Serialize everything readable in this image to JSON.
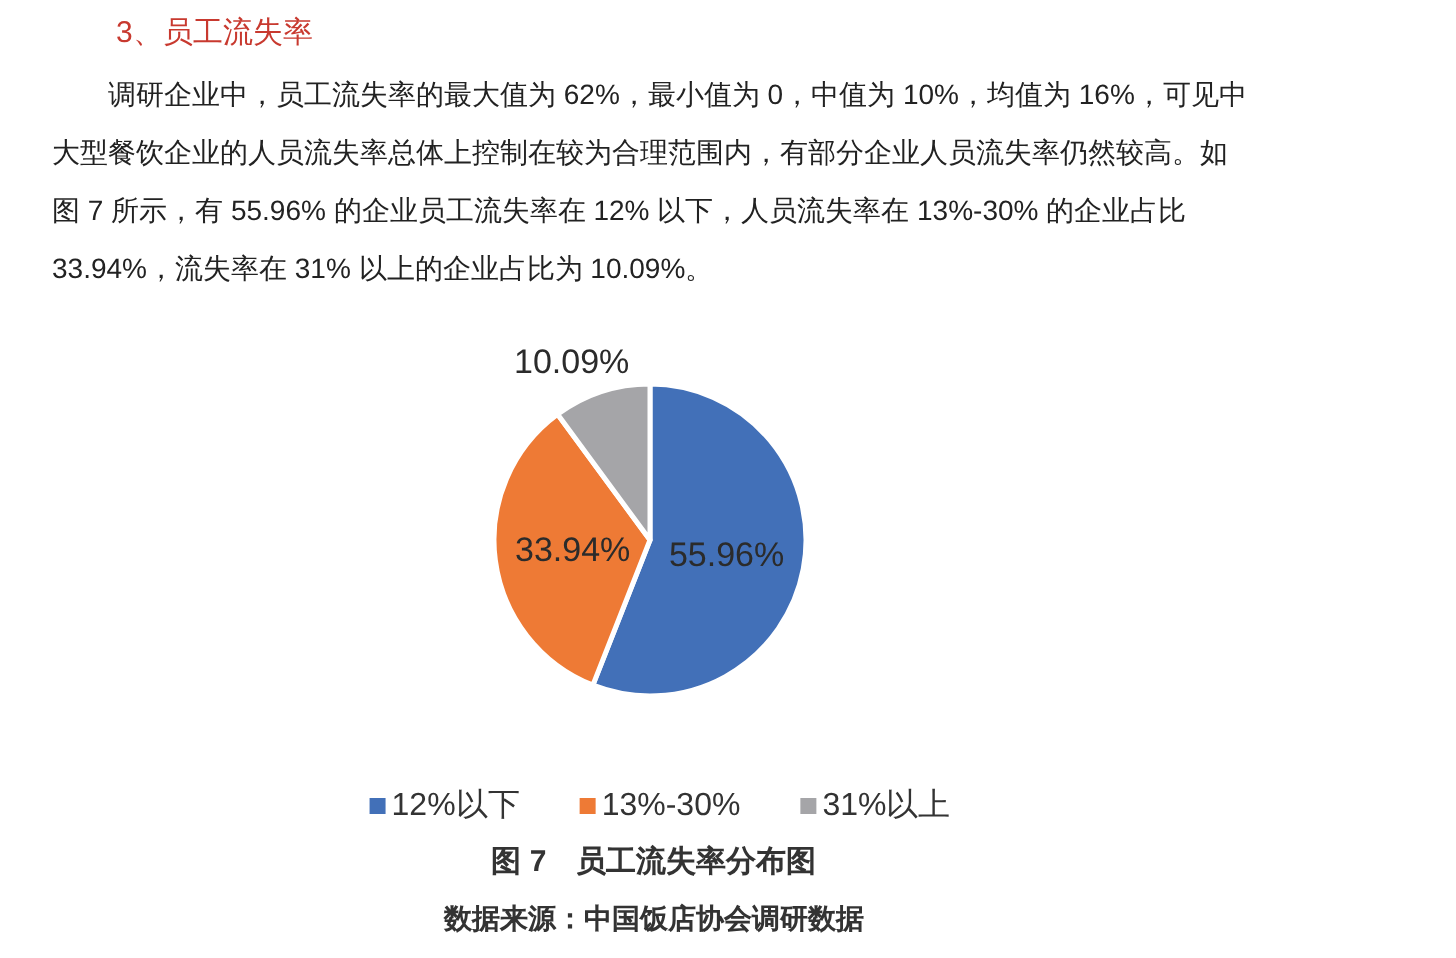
{
  "chart_data": {
    "type": "pie",
    "title": "3、员工流失率",
    "subtitle": "调研企业中，员工流失率的最大值为 62%，最小值为 0，中值为 10%，均值为 16%，可见中大型餐饮企业的人员流失率总体上控制在较为合理范围内，有部分企业人员流失率仍然较高。如图 7 所示，有 55.96% 的企业员工流失率在 12% 以下，人员流失率在 13%-30% 的企业占比 33.94%，流失率在 31% 以上的企业占比为 10.09%。",
    "categories": [
      "12%以下",
      "13%-30%",
      "31%以上"
    ],
    "values": [
      55.96,
      33.94,
      10.09
    ],
    "colors": [
      "#4270b8",
      "#ee7a35",
      "#a5a5a8"
    ],
    "value_labels": [
      "55.96%",
      "33.94%",
      "10.09%"
    ],
    "legend": "bottom",
    "annotations": [
      "图 7　员工流失率分布图",
      "数据来源：中国饭店协会调研数据"
    ]
  }
}
